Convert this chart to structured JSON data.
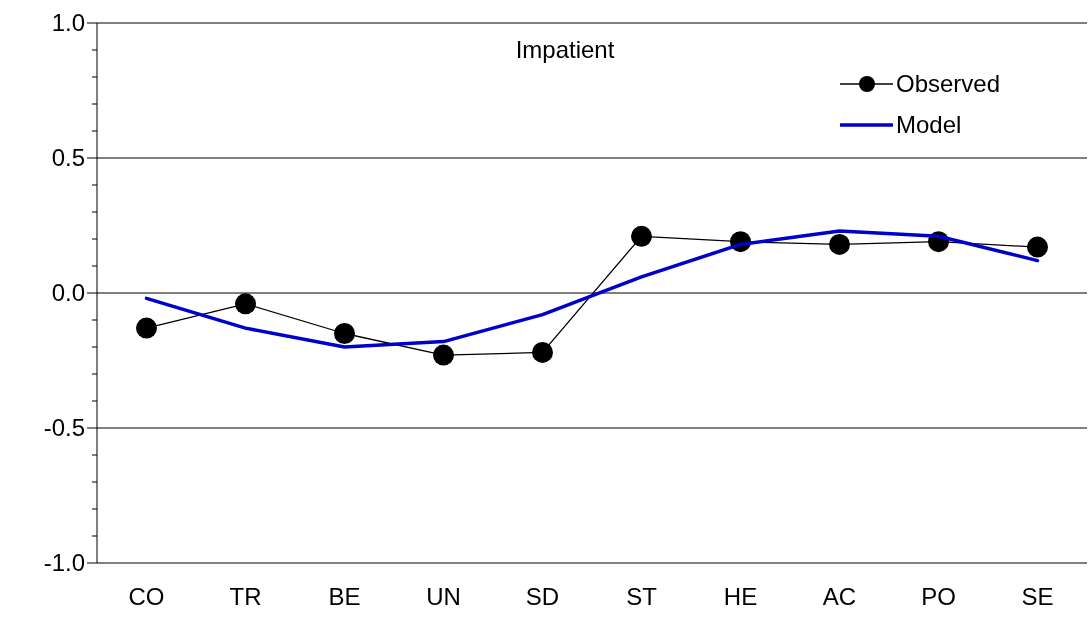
{
  "chart_data": {
    "type": "line",
    "title": "Impatient",
    "categories": [
      "CO",
      "TR",
      "BE",
      "UN",
      "SD",
      "ST",
      "HE",
      "AC",
      "PO",
      "SE"
    ],
    "series": [
      {
        "name": "Observed",
        "color": "#000000",
        "marker": "circle",
        "values": [
          -0.13,
          -0.04,
          -0.15,
          -0.23,
          -0.22,
          0.21,
          0.19,
          0.18,
          0.19,
          0.17
        ]
      },
      {
        "name": "Model",
        "color": "#0000cc",
        "marker": "none",
        "values": [
          -0.02,
          -0.13,
          -0.2,
          -0.18,
          -0.08,
          0.06,
          0.18,
          0.23,
          0.21,
          0.12
        ]
      }
    ],
    "ylim": [
      -1,
      1
    ],
    "yticks": [
      {
        "value": -1,
        "label": "-1.0"
      },
      {
        "value": -0.9,
        "label": null
      },
      {
        "value": -0.8,
        "label": null
      },
      {
        "value": -0.7,
        "label": null
      },
      {
        "value": -0.6,
        "label": null
      },
      {
        "value": -0.5,
        "label": "-0.5"
      },
      {
        "value": -0.4,
        "label": null
      },
      {
        "value": -0.3,
        "label": null
      },
      {
        "value": -0.2,
        "label": null
      },
      {
        "value": -0.1,
        "label": null
      },
      {
        "value": 0,
        "label": "0.0"
      },
      {
        "value": 0.1,
        "label": null
      },
      {
        "value": 0.2,
        "label": null
      },
      {
        "value": 0.3,
        "label": null
      },
      {
        "value": 0.4,
        "label": null
      },
      {
        "value": 0.5,
        "label": "0.5"
      },
      {
        "value": 0.6,
        "label": null
      },
      {
        "value": 0.7,
        "label": null
      },
      {
        "value": 0.8,
        "label": null
      },
      {
        "value": 0.9,
        "label": null
      },
      {
        "value": 1,
        "label": "1.0"
      }
    ],
    "grid": "y",
    "legend": "top right"
  }
}
